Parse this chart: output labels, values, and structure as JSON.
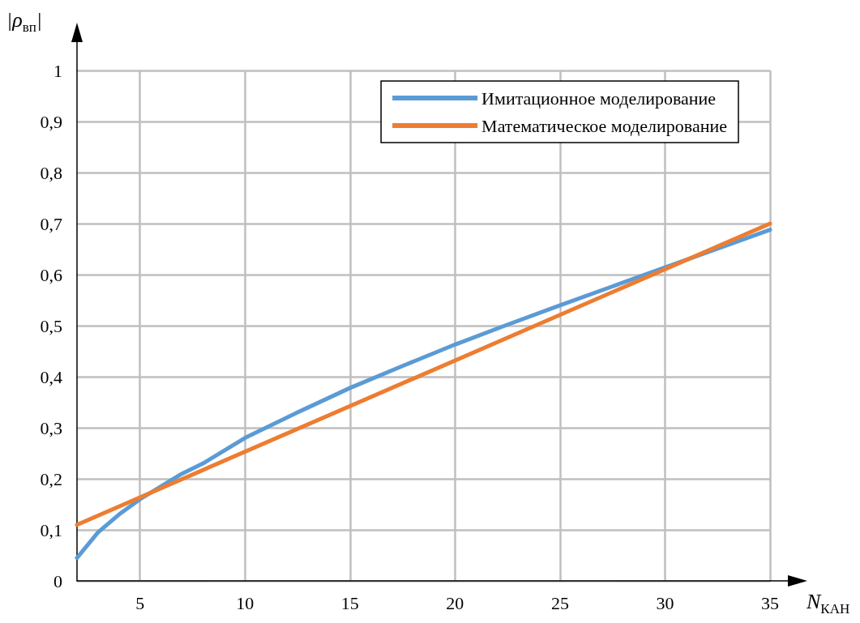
{
  "chart_data": {
    "type": "line",
    "xlabel": "N$_{КАН}$",
    "ylabel": "|ρ$_{вп}$|",
    "series": [
      {
        "name": "Имитационное моделирование",
        "color": "#5b9bd5",
        "x": [
          2,
          3,
          4,
          5,
          6,
          7,
          8,
          10,
          12.5,
          15,
          17.5,
          20,
          22.5,
          25,
          27.5,
          30,
          32.5,
          35
        ],
        "values": [
          0.045,
          0.095,
          0.13,
          0.16,
          0.185,
          0.21,
          0.23,
          0.28,
          0.33,
          0.378,
          0.421,
          0.463,
          0.502,
          0.54,
          0.577,
          0.614,
          0.651,
          0.688
        ]
      },
      {
        "name": "Математическое моделирование",
        "color": "#ed7d31",
        "x": [
          2,
          35
        ],
        "values": [
          0.11,
          0.7
        ]
      }
    ],
    "xlim": [
      2,
      35
    ],
    "xticks": [
      5,
      10,
      15,
      20,
      25,
      30,
      35
    ],
    "ylim": [
      0,
      1
    ],
    "yticks": [
      0,
      {
        "value": 0.1,
        "label": "0,1"
      },
      {
        "value": 0.2,
        "label": "0,2"
      },
      {
        "value": 0.3,
        "label": "0,3"
      },
      {
        "value": 0.4,
        "label": "0,4"
      },
      {
        "value": 0.5,
        "label": "0,5"
      },
      {
        "value": 0.6,
        "label": "0,6"
      },
      {
        "value": 0.7,
        "label": "0,7"
      },
      {
        "value": 0.8,
        "label": "0,8"
      },
      {
        "value": 0.9,
        "label": "0,9"
      },
      1
    ],
    "grid": true,
    "legend": "top right",
    "marker": "none",
    "line_style": "solid"
  }
}
